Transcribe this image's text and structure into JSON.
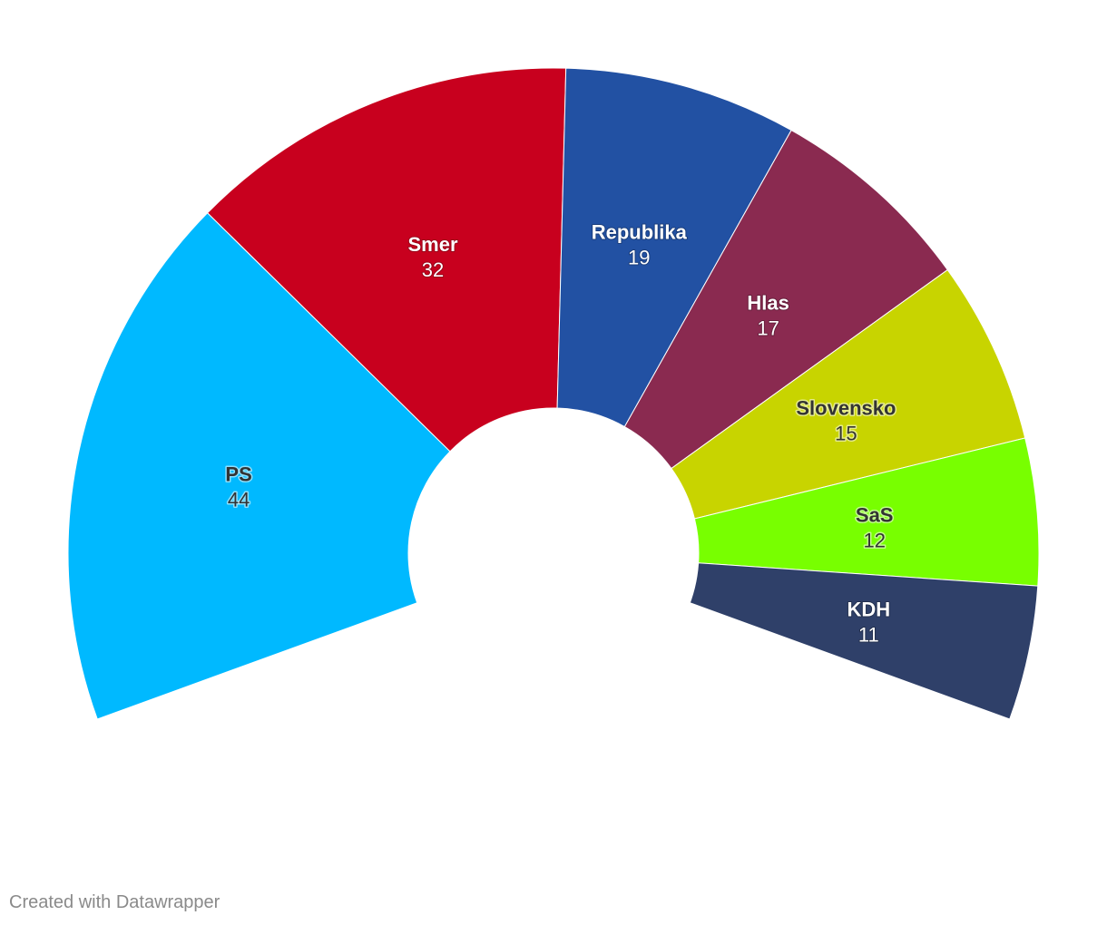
{
  "chart_data": {
    "type": "pie",
    "subtype": "parliament-half-donut",
    "categories": [
      "PS",
      "Smer",
      "Republika",
      "Hlas",
      "Slovensko",
      "SaS",
      "KDH"
    ],
    "values": [
      44,
      32,
      19,
      17,
      15,
      12,
      11
    ],
    "colors": [
      "#00b9ff",
      "#c8001e",
      "#2251a3",
      "#8a2a50",
      "#c8d400",
      "#78ff00",
      "#2f4069"
    ],
    "label_colors": [
      "dark",
      "light",
      "light",
      "light",
      "dark",
      "dark",
      "light"
    ],
    "total": 150,
    "arc_degrees": 220,
    "legend": "none"
  },
  "footer": {
    "credit": "Created with Datawrapper"
  }
}
